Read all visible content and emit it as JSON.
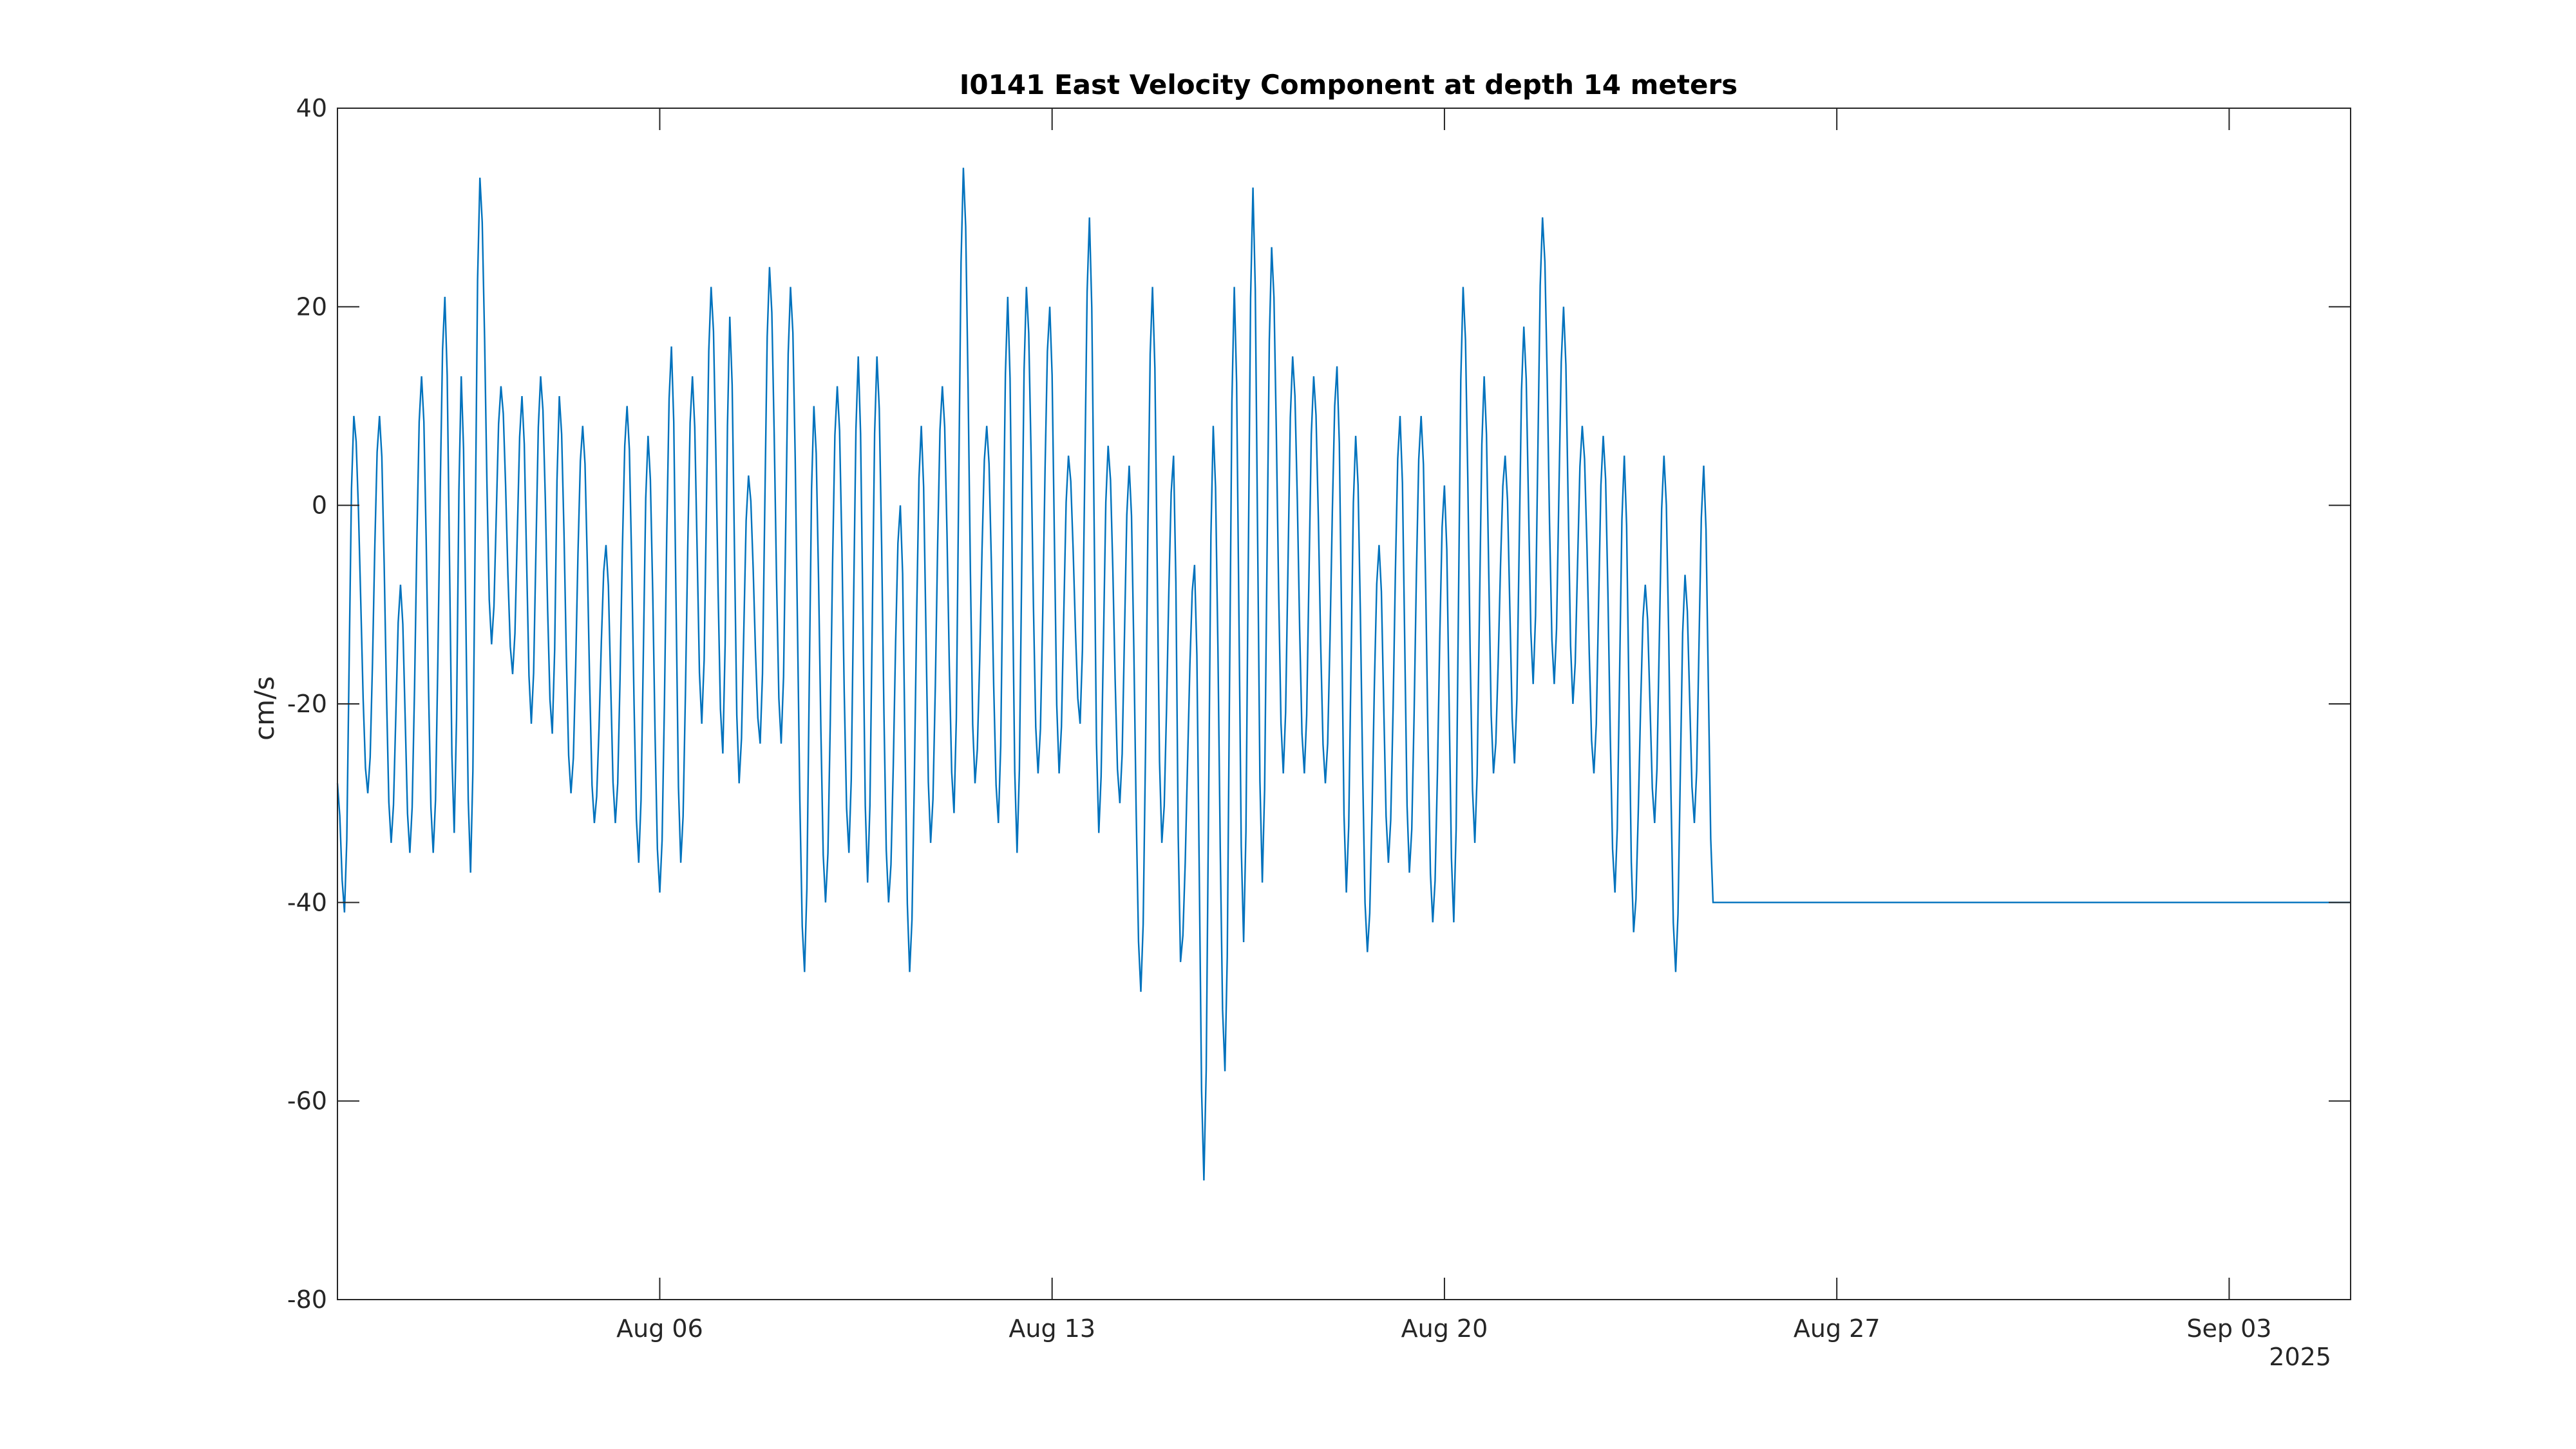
{
  "chart_data": {
    "type": "line",
    "title": "I0141 East Velocity Component at depth 14 meters",
    "xlabel": "",
    "ylabel": "cm/s",
    "x_start": "2025-07-31T06:00",
    "x_end": "2025-09-05T04:00",
    "x_step_hours": 1,
    "xlim": [
      "2025-07-31T06:00",
      "2025-09-05T04:00"
    ],
    "ylim": [
      -80,
      40
    ],
    "yticks": [
      -80,
      -60,
      -40,
      -20,
      0,
      20,
      40
    ],
    "xticks": [
      {
        "date": "2025-08-06",
        "label": "Aug 06"
      },
      {
        "date": "2025-08-13",
        "label": "Aug 13"
      },
      {
        "date": "2025-08-20",
        "label": "Aug 20"
      },
      {
        "date": "2025-08-27",
        "label": "Aug 27"
      },
      {
        "date": "2025-09-03",
        "label": "Sep 03"
      }
    ],
    "x_secondary_label": "2025",
    "grid": false,
    "line_color": "#0072BD",
    "series": [
      {
        "keypoints": [
          [
            "2025-07-31T06:00",
            -28
          ],
          [
            "2025-07-31T09:00",
            -41
          ],
          [
            "2025-07-31T13:00",
            9
          ],
          [
            "2025-07-31T19:00",
            -29
          ],
          [
            "2025-08-01T00:00",
            9
          ],
          [
            "2025-08-01T05:00",
            -34
          ],
          [
            "2025-08-01T09:00",
            -8
          ],
          [
            "2025-08-01T13:00",
            -35
          ],
          [
            "2025-08-01T18:00",
            13
          ],
          [
            "2025-08-01T23:00",
            -35
          ],
          [
            "2025-08-02T04:00",
            21
          ],
          [
            "2025-08-02T08:00",
            -33
          ],
          [
            "2025-08-02T11:00",
            13
          ],
          [
            "2025-08-02T15:00",
            -37
          ],
          [
            "2025-08-02T19:00",
            33
          ],
          [
            "2025-08-03T00:00",
            -14
          ],
          [
            "2025-08-03T04:00",
            12
          ],
          [
            "2025-08-03T09:00",
            -17
          ],
          [
            "2025-08-03T13:00",
            11
          ],
          [
            "2025-08-03T17:00",
            -22
          ],
          [
            "2025-08-03T21:00",
            13
          ],
          [
            "2025-08-04T02:00",
            -23
          ],
          [
            "2025-08-04T05:00",
            11
          ],
          [
            "2025-08-04T10:00",
            -29
          ],
          [
            "2025-08-04T15:00",
            8
          ],
          [
            "2025-08-04T20:00",
            -32
          ],
          [
            "2025-08-05T01:00",
            -4
          ],
          [
            "2025-08-05T05:00",
            -32
          ],
          [
            "2025-08-05T10:00",
            10
          ],
          [
            "2025-08-05T15:00",
            -36
          ],
          [
            "2025-08-05T19:00",
            7
          ],
          [
            "2025-08-06T00:00",
            -39
          ],
          [
            "2025-08-06T05:00",
            16
          ],
          [
            "2025-08-06T09:00",
            -36
          ],
          [
            "2025-08-06T14:00",
            13
          ],
          [
            "2025-08-06T18:00",
            -22
          ],
          [
            "2025-08-06T22:00",
            22
          ],
          [
            "2025-08-07T03:00",
            -25
          ],
          [
            "2025-08-07T06:00",
            19
          ],
          [
            "2025-08-07T10:00",
            -28
          ],
          [
            "2025-08-07T14:00",
            3
          ],
          [
            "2025-08-07T19:00",
            -24
          ],
          [
            "2025-08-07T23:00",
            24
          ],
          [
            "2025-08-08T04:00",
            -24
          ],
          [
            "2025-08-08T08:00",
            22
          ],
          [
            "2025-08-08T14:00",
            -47
          ],
          [
            "2025-08-08T18:00",
            10
          ],
          [
            "2025-08-08T23:00",
            -40
          ],
          [
            "2025-08-09T04:00",
            12
          ],
          [
            "2025-08-09T09:00",
            -35
          ],
          [
            "2025-08-09T13:00",
            15
          ],
          [
            "2025-08-09T17:00",
            -38
          ],
          [
            "2025-08-09T21:00",
            15
          ],
          [
            "2025-08-10T02:00",
            -40
          ],
          [
            "2025-08-10T07:00",
            0
          ],
          [
            "2025-08-10T11:00",
            -47
          ],
          [
            "2025-08-10T16:00",
            8
          ],
          [
            "2025-08-10T20:00",
            -34
          ],
          [
            "2025-08-11T01:00",
            12
          ],
          [
            "2025-08-11T06:00",
            -31
          ],
          [
            "2025-08-11T10:00",
            34
          ],
          [
            "2025-08-11T15:00",
            -28
          ],
          [
            "2025-08-11T20:00",
            8
          ],
          [
            "2025-08-12T01:00",
            -32
          ],
          [
            "2025-08-12T05:00",
            21
          ],
          [
            "2025-08-12T09:00",
            -35
          ],
          [
            "2025-08-12T13:00",
            22
          ],
          [
            "2025-08-12T18:00",
            -27
          ],
          [
            "2025-08-12T23:00",
            20
          ],
          [
            "2025-08-13T03:00",
            -27
          ],
          [
            "2025-08-13T07:00",
            5
          ],
          [
            "2025-08-13T12:00",
            -22
          ],
          [
            "2025-08-13T16:00",
            29
          ],
          [
            "2025-08-13T20:00",
            -33
          ],
          [
            "2025-08-14T00:00",
            6
          ],
          [
            "2025-08-14T05:00",
            -30
          ],
          [
            "2025-08-14T09:00",
            4
          ],
          [
            "2025-08-14T14:00",
            -49
          ],
          [
            "2025-08-14T19:00",
            22
          ],
          [
            "2025-08-14T23:00",
            -34
          ],
          [
            "2025-08-15T04:00",
            5
          ],
          [
            "2025-08-15T07:00",
            -46
          ],
          [
            "2025-08-15T13:00",
            -6
          ],
          [
            "2025-08-15T17:00",
            -68
          ],
          [
            "2025-08-15T21:00",
            8
          ],
          [
            "2025-08-16T02:00",
            -57
          ],
          [
            "2025-08-16T06:00",
            22
          ],
          [
            "2025-08-16T10:00",
            -44
          ],
          [
            "2025-08-16T14:00",
            32
          ],
          [
            "2025-08-16T18:00",
            -38
          ],
          [
            "2025-08-16T22:00",
            26
          ],
          [
            "2025-08-17T03:00",
            -27
          ],
          [
            "2025-08-17T07:00",
            15
          ],
          [
            "2025-08-17T12:00",
            -27
          ],
          [
            "2025-08-17T16:00",
            13
          ],
          [
            "2025-08-17T21:00",
            -28
          ],
          [
            "2025-08-18T02:00",
            14
          ],
          [
            "2025-08-18T06:00",
            -39
          ],
          [
            "2025-08-18T10:00",
            7
          ],
          [
            "2025-08-18T15:00",
            -45
          ],
          [
            "2025-08-18T20:00",
            -4
          ],
          [
            "2025-08-19T00:00",
            -36
          ],
          [
            "2025-08-19T05:00",
            9
          ],
          [
            "2025-08-19T09:00",
            -37
          ],
          [
            "2025-08-19T14:00",
            9
          ],
          [
            "2025-08-19T19:00",
            -42
          ],
          [
            "2025-08-20T00:00",
            2
          ],
          [
            "2025-08-20T04:00",
            -42
          ],
          [
            "2025-08-20T08:00",
            22
          ],
          [
            "2025-08-20T13:00",
            -34
          ],
          [
            "2025-08-20T17:00",
            13
          ],
          [
            "2025-08-20T21:00",
            -27
          ],
          [
            "2025-08-21T02:00",
            5
          ],
          [
            "2025-08-21T06:00",
            -26
          ],
          [
            "2025-08-21T10:00",
            18
          ],
          [
            "2025-08-21T14:00",
            -18
          ],
          [
            "2025-08-21T18:00",
            29
          ],
          [
            "2025-08-21T23:00",
            -18
          ],
          [
            "2025-08-22T03:00",
            20
          ],
          [
            "2025-08-22T07:00",
            -20
          ],
          [
            "2025-08-22T11:00",
            8
          ],
          [
            "2025-08-22T16:00",
            -27
          ],
          [
            "2025-08-22T20:00",
            7
          ],
          [
            "2025-08-23T01:00",
            -39
          ],
          [
            "2025-08-23T05:00",
            5
          ],
          [
            "2025-08-23T09:00",
            -43
          ],
          [
            "2025-08-23T14:00",
            -8
          ],
          [
            "2025-08-23T18:00",
            -32
          ],
          [
            "2025-08-23T22:00",
            5
          ],
          [
            "2025-08-24T03:00",
            -47
          ],
          [
            "2025-08-24T07:00",
            -7
          ],
          [
            "2025-08-24T11:00",
            -32
          ],
          [
            "2025-08-24T15:00",
            4
          ],
          [
            "2025-08-24T19:00",
            -40
          ],
          [
            "2025-08-25T00:00",
            -40
          ]
        ]
      }
    ]
  }
}
